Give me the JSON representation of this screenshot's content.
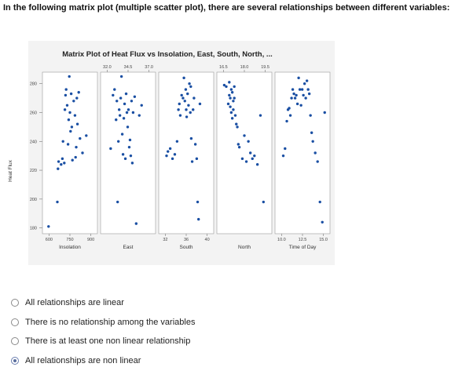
{
  "question": "In the following matrix plot (multiple scatter plot), there are several relationships between different variables:",
  "plot": {
    "title": "Matrix Plot of Heat Flux vs Insolation, East, South, North, ...",
    "y_label": "Heat Flux",
    "y_ticks": [
      "280",
      "260",
      "240",
      "220",
      "200",
      "180"
    ],
    "marker_color": "#1a4fa3",
    "panels": [
      {
        "id": "insolation",
        "label": "Insolation",
        "bottom_ticks": [
          "600",
          "750",
          "900"
        ],
        "top_ticks": []
      },
      {
        "id": "east",
        "label": "East",
        "bottom_ticks": [],
        "top_ticks": [
          "32.0",
          "34.5",
          "37.0"
        ]
      },
      {
        "id": "south",
        "label": "South",
        "bottom_ticks": [
          "32",
          "36",
          "40"
        ],
        "top_ticks": []
      },
      {
        "id": "north",
        "label": "North",
        "bottom_ticks": [],
        "top_ticks": [
          "16.5",
          "18.0",
          "19.5"
        ]
      },
      {
        "id": "time",
        "label": "Time of Day",
        "bottom_ticks": [
          "10.0",
          "12.5",
          "15.0"
        ],
        "top_ticks": []
      }
    ]
  },
  "chart_data": {
    "type": "scatter",
    "title": "Matrix Plot of Heat Flux vs Insolation, East, South, North, ...",
    "ylabel": "Heat Flux",
    "ylim": [
      176,
      288
    ],
    "panels": [
      {
        "xlabel": "Insolation",
        "xlim": [
          560,
          960
        ],
        "x": [
          590,
          660,
          665,
          670,
          690,
          700,
          705,
          715,
          720,
          725,
          730,
          738,
          745,
          750,
          755,
          760,
          765,
          770,
          775,
          780,
          790,
          800,
          805,
          810,
          815,
          820,
          830,
          840,
          860,
          890
        ],
        "y": [
          181,
          198,
          221,
          226,
          224,
          228,
          240,
          225,
          262,
          272,
          276,
          265,
          238,
          255,
          285,
          260,
          247,
          273,
          250,
          227,
          268,
          258,
          229,
          236,
          270,
          252,
          274,
          242,
          232,
          244
        ]
      },
      {
        "xlabel": "East",
        "xlim": [
          31.5,
          38.0
        ],
        "x": [
          32.5,
          32.8,
          33.0,
          33.2,
          33.3,
          33.4,
          33.5,
          33.6,
          33.7,
          33.8,
          33.9,
          34.0,
          34.1,
          34.2,
          34.3,
          34.4,
          34.5,
          34.6,
          34.7,
          34.8,
          34.9,
          35.0,
          35.1,
          35.2,
          35.3,
          35.4,
          35.6,
          35.8,
          36.2,
          36.5
        ],
        "y": [
          235,
          272,
          276,
          255,
          268,
          198,
          240,
          262,
          258,
          270,
          285,
          245,
          231,
          256,
          266,
          228,
          273,
          260,
          250,
          262,
          236,
          241,
          230,
          268,
          225,
          260,
          271,
          183,
          258,
          265
        ]
      },
      {
        "xlabel": "South",
        "xlim": [
          31,
          42
        ],
        "x": [
          32.2,
          32.5,
          33,
          33.5,
          34,
          34.5,
          34.8,
          35,
          35.2,
          35.5,
          35.8,
          36,
          36.2,
          36.4,
          36.5,
          36.6,
          36.8,
          37,
          37.2,
          37.4,
          37.5,
          37.6,
          37.8,
          38,
          38.2,
          38.5,
          38.8,
          39,
          39.2,
          39.5
        ],
        "y": [
          230,
          233,
          235,
          228,
          231,
          240,
          262,
          266,
          258,
          272,
          270,
          284,
          268,
          276,
          262,
          257,
          273,
          265,
          280,
          260,
          278,
          242,
          226,
          262,
          270,
          238,
          228,
          198,
          186,
          266
        ]
      },
      {
        "xlabel": "North",
        "xlim": [
          15.5,
          20.5
        ],
        "x": [
          16.0,
          16.2,
          16.4,
          16.5,
          16.5,
          16.6,
          16.6,
          16.7,
          16.7,
          16.8,
          16.8,
          16.9,
          16.9,
          17.0,
          17.0,
          17.1,
          17.2,
          17.3,
          17.4,
          17.5,
          17.8,
          18.0,
          18.2,
          18.4,
          18.6,
          18.8,
          19.0,
          19.3,
          19.6,
          19.9
        ],
        "y": [
          279,
          278,
          266,
          281,
          272,
          270,
          264,
          276,
          260,
          274,
          256,
          268,
          262,
          278,
          270,
          258,
          252,
          250,
          238,
          236,
          228,
          244,
          226,
          240,
          232,
          228,
          230,
          224,
          258,
          198
        ]
      },
      {
        "xlabel": "Time of Day",
        "xlim": [
          8.0,
          16.5
        ],
        "x": [
          9.0,
          9.3,
          9.6,
          9.8,
          10.0,
          10.2,
          10.4,
          10.6,
          10.8,
          11.0,
          11.2,
          11.4,
          11.6,
          11.8,
          12.0,
          12.2,
          12.4,
          12.6,
          12.8,
          13.0,
          13.2,
          13.4,
          13.6,
          13.8,
          14.0,
          14.4,
          14.8,
          15.2,
          15.6,
          16.0
        ],
        "y": [
          230,
          235,
          254,
          262,
          263,
          258,
          270,
          276,
          273,
          270,
          272,
          266,
          284,
          276,
          265,
          276,
          272,
          280,
          270,
          282,
          276,
          273,
          258,
          246,
          240,
          232,
          226,
          198,
          184,
          260
        ]
      }
    ]
  },
  "choices": [
    {
      "label": "All relationships are linear",
      "selected": false
    },
    {
      "label": "There is no relationship among the variables",
      "selected": false
    },
    {
      "label": "There is at least one non linear relationship",
      "selected": false
    },
    {
      "label": "All relationships are non linear",
      "selected": true
    }
  ]
}
